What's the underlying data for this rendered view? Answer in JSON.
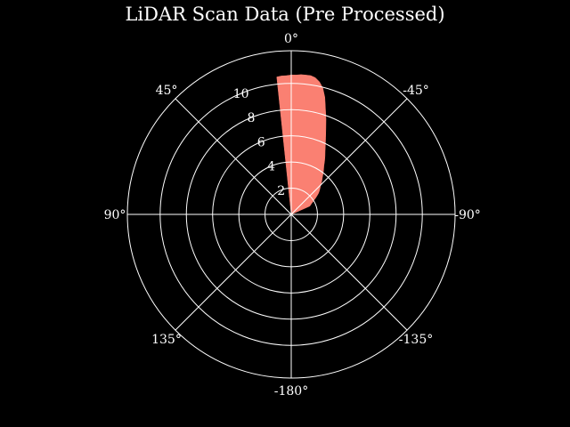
{
  "chart_data": {
    "type": "polar-area",
    "title": "LiDAR Scan Data (Pre Processed)",
    "background": "#000000",
    "fill_color": "#fa8072",
    "grid_color": "#ffffff",
    "grid": true,
    "theta_zero": "top",
    "theta_direction": "counterclockwise",
    "angle_ticks": [
      0,
      45,
      90,
      135,
      180,
      -135,
      -90,
      -45
    ],
    "angle_tick_labels": [
      "0°",
      "45°",
      "90°",
      "135°",
      "-180°",
      "-135°",
      "-90°",
      "-45°"
    ],
    "radial_ticks": [
      2,
      4,
      6,
      8,
      10
    ],
    "radial_tick_labels": [
      "2",
      "4",
      "6",
      "8",
      "10"
    ],
    "rlim": [
      0,
      12.5
    ],
    "radial_label_angle_deg": 22.5,
    "series": [
      {
        "angles_deg": [
          6.0,
          4.0,
          2.0,
          0.0,
          -2.0,
          -4.0,
          -6.0,
          -8.0,
          -10.0,
          -12.0,
          -14.0,
          -16.0,
          -18.0,
          -20.0,
          -22.0,
          -24.0,
          -26.0,
          -28.0,
          -30.0,
          -32.0,
          -34.0,
          -36.0,
          -38.0,
          -40.0,
          -42.0,
          -44.0,
          -46.0,
          -48.0,
          -50.0,
          -52.0,
          -54.0,
          -56.0,
          -58.0,
          -60.0,
          -62.0,
          -64.0,
          -66.0
        ],
        "ranges": [
          10.55,
          10.6,
          10.6,
          10.65,
          10.65,
          10.7,
          10.7,
          10.7,
          10.6,
          10.35,
          9.95,
          9.3,
          8.45,
          7.75,
          7.05,
          6.45,
          5.95,
          5.5,
          5.15,
          4.8,
          4.45,
          4.2,
          3.95,
          3.7,
          3.5,
          3.3,
          3.1,
          2.95,
          2.8,
          2.65,
          2.45,
          2.25,
          2.05,
          1.9,
          1.75,
          1.65,
          1.55
        ]
      }
    ]
  }
}
